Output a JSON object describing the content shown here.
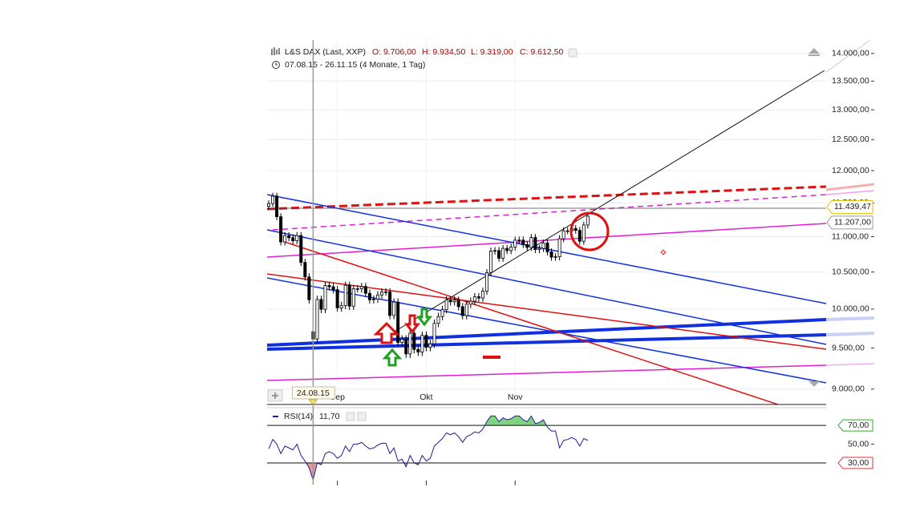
{
  "header": {
    "instrument": "L&S DAX (Last, XXP)",
    "open": "O: 9.706,00",
    "high": "H: 9.934,50",
    "low": "L: 9.319,00",
    "close": "C: 9.612,50",
    "range": "07.08.15 - 26.11.15 (4 Monate, 1 Tag)"
  },
  "cursor": {
    "index": 11,
    "label": "24.08.15"
  },
  "chart_data": [
    {
      "type": "candlestick",
      "open": [
        11450,
        11490,
        11604,
        11293,
        10924,
        11014,
        10985,
        10940,
        11016,
        10633,
        10432,
        9706,
        9612.5,
        10128,
        9997,
        10315,
        10298,
        10259,
        10016,
        10048,
        10318,
        10038,
        10271,
        10271,
        10303,
        10210,
        10123,
        10131,
        10188,
        10227,
        10229,
        9916,
        10093,
        9570,
        9612,
        9427,
        9688,
        9483,
        9450,
        9660,
        9509,
        9553,
        9814,
        9902,
        9994,
        10119,
        10096,
        10118,
        10032,
        9915,
        10064,
        10104,
        10164,
        10147,
        10238,
        10491,
        10794,
        10801,
        10692,
        10832,
        10800,
        10850,
        10950,
        10951,
        10887,
        10845,
        10988,
        10815,
        10832,
        10908,
        10782,
        10708,
        10713,
        10971,
        11085,
        11085,
        11119,
        11092,
        10934,
        11170
      ],
      "high": [
        11540,
        11654,
        11654,
        11343,
        11064,
        11064,
        11035,
        11066,
        11066,
        10683,
        10482,
        9934.5,
        10178,
        10178,
        10365,
        10365,
        10348,
        10309,
        10098,
        10368,
        10368,
        10321,
        10321,
        10353,
        10353,
        10260,
        10181,
        10238,
        10277,
        10279,
        10279,
        10143,
        10143,
        9662,
        9662,
        9738,
        9738,
        9533,
        9710,
        9710,
        9603,
        9864,
        9952,
        10044,
        10169,
        10169,
        10168,
        10168,
        10082,
        10114,
        10154,
        10214,
        10214,
        10288,
        10541,
        10844,
        10851,
        10851,
        10882,
        10882,
        10900,
        11000,
        11001,
        11001,
        10937,
        11038,
        11038,
        10882,
        10958,
        10958,
        10832,
        10763,
        11021,
        11135,
        11135,
        11169,
        11169,
        11142,
        11220,
        11350
      ],
      "low": [
        11400,
        11440,
        11243,
        10874,
        10874,
        10935,
        10890,
        10890,
        10583,
        10382,
        10074,
        9319,
        9562.5,
        9947,
        9947,
        10248,
        10209,
        9966,
        9966,
        9998,
        9988,
        9988,
        10221,
        10221,
        10160,
        10073,
        10073,
        10081,
        10138,
        10177,
        9866,
        9866,
        9520,
        9520,
        9377,
        9377,
        9433,
        9400,
        9400,
        9459,
        9459,
        9503,
        9764,
        9852,
        9944,
        10046,
        10046,
        9982,
        9865,
        9865,
        10014,
        10054,
        10097,
        10097,
        10188,
        10441,
        10744,
        10642,
        10642,
        10750,
        10750,
        10800,
        10900,
        10837,
        10795,
        10795,
        10765,
        10765,
        10782,
        10732,
        10658,
        10658,
        10663,
        10921,
        11035,
        11035,
        11042,
        10884,
        10884,
        11120
      ],
      "close": [
        11490,
        11604,
        11293,
        10924,
        11014,
        10985,
        10940,
        11016,
        10633,
        10432,
        10124,
        9612.5,
        10128,
        9997,
        10315,
        10298,
        10259,
        10016,
        10048,
        10318,
        10038,
        10271,
        10271,
        10303,
        10210,
        10123,
        10131,
        10188,
        10227,
        10229,
        9916,
        10093,
        9570,
        9612,
        9427,
        9688,
        9483,
        9450,
        9660,
        9509,
        9553,
        9814,
        9902,
        9994,
        10119,
        10096,
        10118,
        10032,
        9915,
        10064,
        10104,
        10164,
        10147,
        10238,
        10491,
        10794,
        10801,
        10692,
        10832,
        10800,
        10850,
        10950,
        10951,
        10887,
        10845,
        10988,
        10815,
        10832,
        10908,
        10782,
        10708,
        10713,
        10971,
        11085,
        11085,
        11119,
        11092,
        10934,
        11170,
        11300
      ],
      "xlim": [
        -0.4,
        138
      ],
      "xticks": [
        {
          "value": 17,
          "label": "Sep"
        },
        {
          "value": 39,
          "label": "Okt"
        },
        {
          "value": 61,
          "label": "Nov"
        }
      ],
      "ylim": [
        8820,
        14250
      ],
      "log": true,
      "yticks": [
        {
          "value": 9000,
          "label": "9.000,00"
        },
        {
          "value": 9500,
          "label": "9.500,00"
        },
        {
          "value": 10000,
          "label": "10.000,00"
        },
        {
          "value": 10500,
          "label": "10.500,00"
        },
        {
          "value": 11000,
          "label": "11.000,00"
        },
        {
          "value": 11500,
          "label": "11.500,00"
        },
        {
          "value": 12000,
          "label": "12.000,00"
        },
        {
          "value": 12500,
          "label": "12.500,00"
        },
        {
          "value": 13000,
          "label": "13.000,00"
        },
        {
          "value": 13500,
          "label": "13.500,00"
        },
        {
          "value": 14000,
          "label": "14.000,00"
        }
      ],
      "grid": true,
      "up_color": "#ffffff",
      "down_color": "#000000",
      "annotations": [
        {
          "value": 11439.47,
          "label": "11.439,47",
          "color": "#e6c200"
        },
        {
          "value": 11207,
          "label": "11.207,00",
          "color": "#999999"
        }
      ]
    },
    {
      "type": "line",
      "title": "RSI(14)",
      "value_label": "11,70",
      "color": "#1c1c9c",
      "values": [
        45,
        55,
        50,
        40,
        48,
        46,
        44,
        50,
        38,
        32,
        25,
        11.7,
        30,
        28,
        40,
        42,
        40,
        35,
        38,
        48,
        42,
        50,
        50,
        52,
        48,
        45,
        46,
        49,
        51,
        51,
        40,
        46,
        32,
        34,
        26,
        38,
        30,
        28,
        38,
        32,
        35,
        48,
        52,
        56,
        62,
        60,
        62,
        58,
        52,
        58,
        60,
        63,
        62,
        66,
        74,
        80,
        80,
        74,
        78,
        76,
        77,
        80,
        80,
        76,
        74,
        80,
        72,
        73,
        76,
        68,
        64,
        64,
        46,
        54,
        55,
        57,
        55,
        48,
        56,
        54
      ],
      "ylim": [
        7,
        88
      ],
      "yticks": [
        {
          "value": 70,
          "label": "70,00",
          "color": "#33aa33"
        },
        {
          "value": 50,
          "label": "50,00"
        },
        {
          "value": 30,
          "label": "30,00",
          "color": "#dd3333"
        }
      ],
      "over_color": "#7fd37f",
      "under_color": "#ee9999"
    }
  ]
}
